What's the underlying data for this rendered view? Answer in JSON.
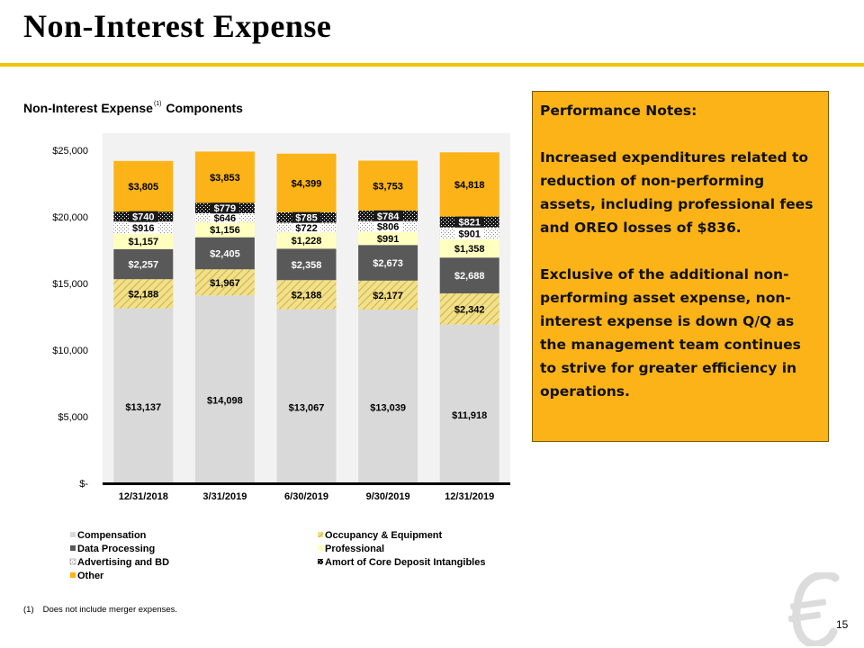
{
  "slide": {
    "title": "Non-Interest Expense",
    "page_number": "15"
  },
  "chart_title": {
    "main": "Non-Interest Expense",
    "superscript": "(1)",
    "suffix": " Components"
  },
  "notes": {
    "heading": "Performance Notes:",
    "paragraphs": [
      "Increased expenditures related to reduction of non-performing assets, including professional fees and OREO losses of $836.",
      "Exclusive of the additional non-performing asset expense, non-interest expense is down Q/Q as the management team continues to strive for greater efficiency in operations."
    ]
  },
  "footnote": {
    "number": "(1)",
    "text": "Does not include merger expenses."
  },
  "colors": {
    "accent_rule": "#f2c300",
    "notes_background": "#fbb317",
    "compensation": "#d9d9d9",
    "occupancy": "#f2e08a",
    "data_processing": "#595959",
    "professional": "#ffffc0",
    "advertising": "#ffffff",
    "amortization": "#1a1a1a",
    "other": "#fbb317"
  },
  "chart_data": {
    "type": "bar",
    "stacked": true,
    "categories": [
      "12/31/2018",
      "3/31/2019",
      "6/30/2019",
      "9/30/2019",
      "12/31/2019"
    ],
    "series": [
      {
        "name": "Compensation",
        "values": [
          13137,
          14098,
          13067,
          13039,
          11918
        ],
        "labels": [
          "$13,137",
          "$14,098",
          "$13,067",
          "$13,039",
          "$11,918"
        ]
      },
      {
        "name": "Occupancy & Equipment",
        "values": [
          2188,
          1967,
          2188,
          2177,
          2342
        ],
        "labels": [
          "$2,188",
          "$1,967",
          "$2,188",
          "$2,177",
          "$2,342"
        ]
      },
      {
        "name": "Data Processing",
        "values": [
          2257,
          2405,
          2358,
          2673,
          2688
        ],
        "labels": [
          "$2,257",
          "$2,405",
          "$2,358",
          "$2,673",
          "$2,688"
        ]
      },
      {
        "name": "Professional",
        "values": [
          1157,
          1156,
          1228,
          991,
          1358
        ],
        "labels": [
          "$1,157",
          "$1,156",
          "$1,228",
          "$991",
          "$1,358"
        ]
      },
      {
        "name": "Advertising and BD",
        "values": [
          916,
          646,
          722,
          806,
          901
        ],
        "labels": [
          "$916",
          "$646",
          "$722",
          "$806",
          "$901"
        ]
      },
      {
        "name": "Amort of Core Deposit Intangibles",
        "values": [
          740,
          779,
          785,
          784,
          821
        ],
        "labels": [
          "$740",
          "$779",
          "$785",
          "$784",
          "$821"
        ]
      },
      {
        "name": "Other",
        "values": [
          3805,
          3853,
          4399,
          3753,
          4818
        ],
        "labels": [
          "$3,805",
          "$3,853",
          "$4,399",
          "$3,753",
          "$4,818"
        ]
      }
    ],
    "ylim": [
      0,
      25000
    ],
    "ytick_values": [
      0,
      5000,
      10000,
      15000,
      20000,
      25000
    ],
    "ytick_labels": [
      "$-",
      "$5,000",
      "$10,000",
      "$15,000",
      "$20,000",
      "$25,000"
    ],
    "grid": false,
    "legend_position": "bottom",
    "plot_background": "#f2f2f2"
  }
}
